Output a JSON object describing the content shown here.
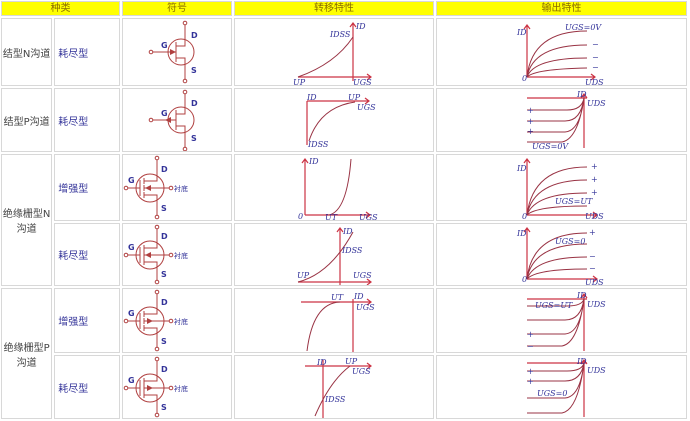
{
  "header": {
    "kind": "种类",
    "symbol": "符号",
    "transfer": "转移特性",
    "output": "输出特性"
  },
  "rows": [
    {
      "kind": "结型N沟道",
      "sub": "耗尽型"
    },
    {
      "kind": "结型P沟道",
      "sub": "耗尽型"
    },
    {
      "kind": "绝缘栅型N沟道",
      "sub": "增强型"
    },
    {
      "sub": "耗尽型"
    },
    {
      "kind": "绝缘栅型P沟道",
      "sub": "增强型"
    },
    {
      "sub": "耗尽型"
    }
  ],
  "sym": {
    "g": "G",
    "d": "D",
    "s": "S",
    "substrate": "衬底"
  },
  "lbl": {
    "id": "ID",
    "idss": "IDSS",
    "up": "UP",
    "ut": "UT",
    "ugs": "UGS",
    "uds": "UDS",
    "zero": "0",
    "ugs0v": "UGS=0V",
    "ugs0": "UGS=0",
    "ugsut": "UGS=UT",
    "plus": "+",
    "minus": "−"
  },
  "colors": {
    "header_bg": "#ffff00",
    "axis": "#cc3344",
    "curve": "#993344",
    "label": "#333399"
  }
}
